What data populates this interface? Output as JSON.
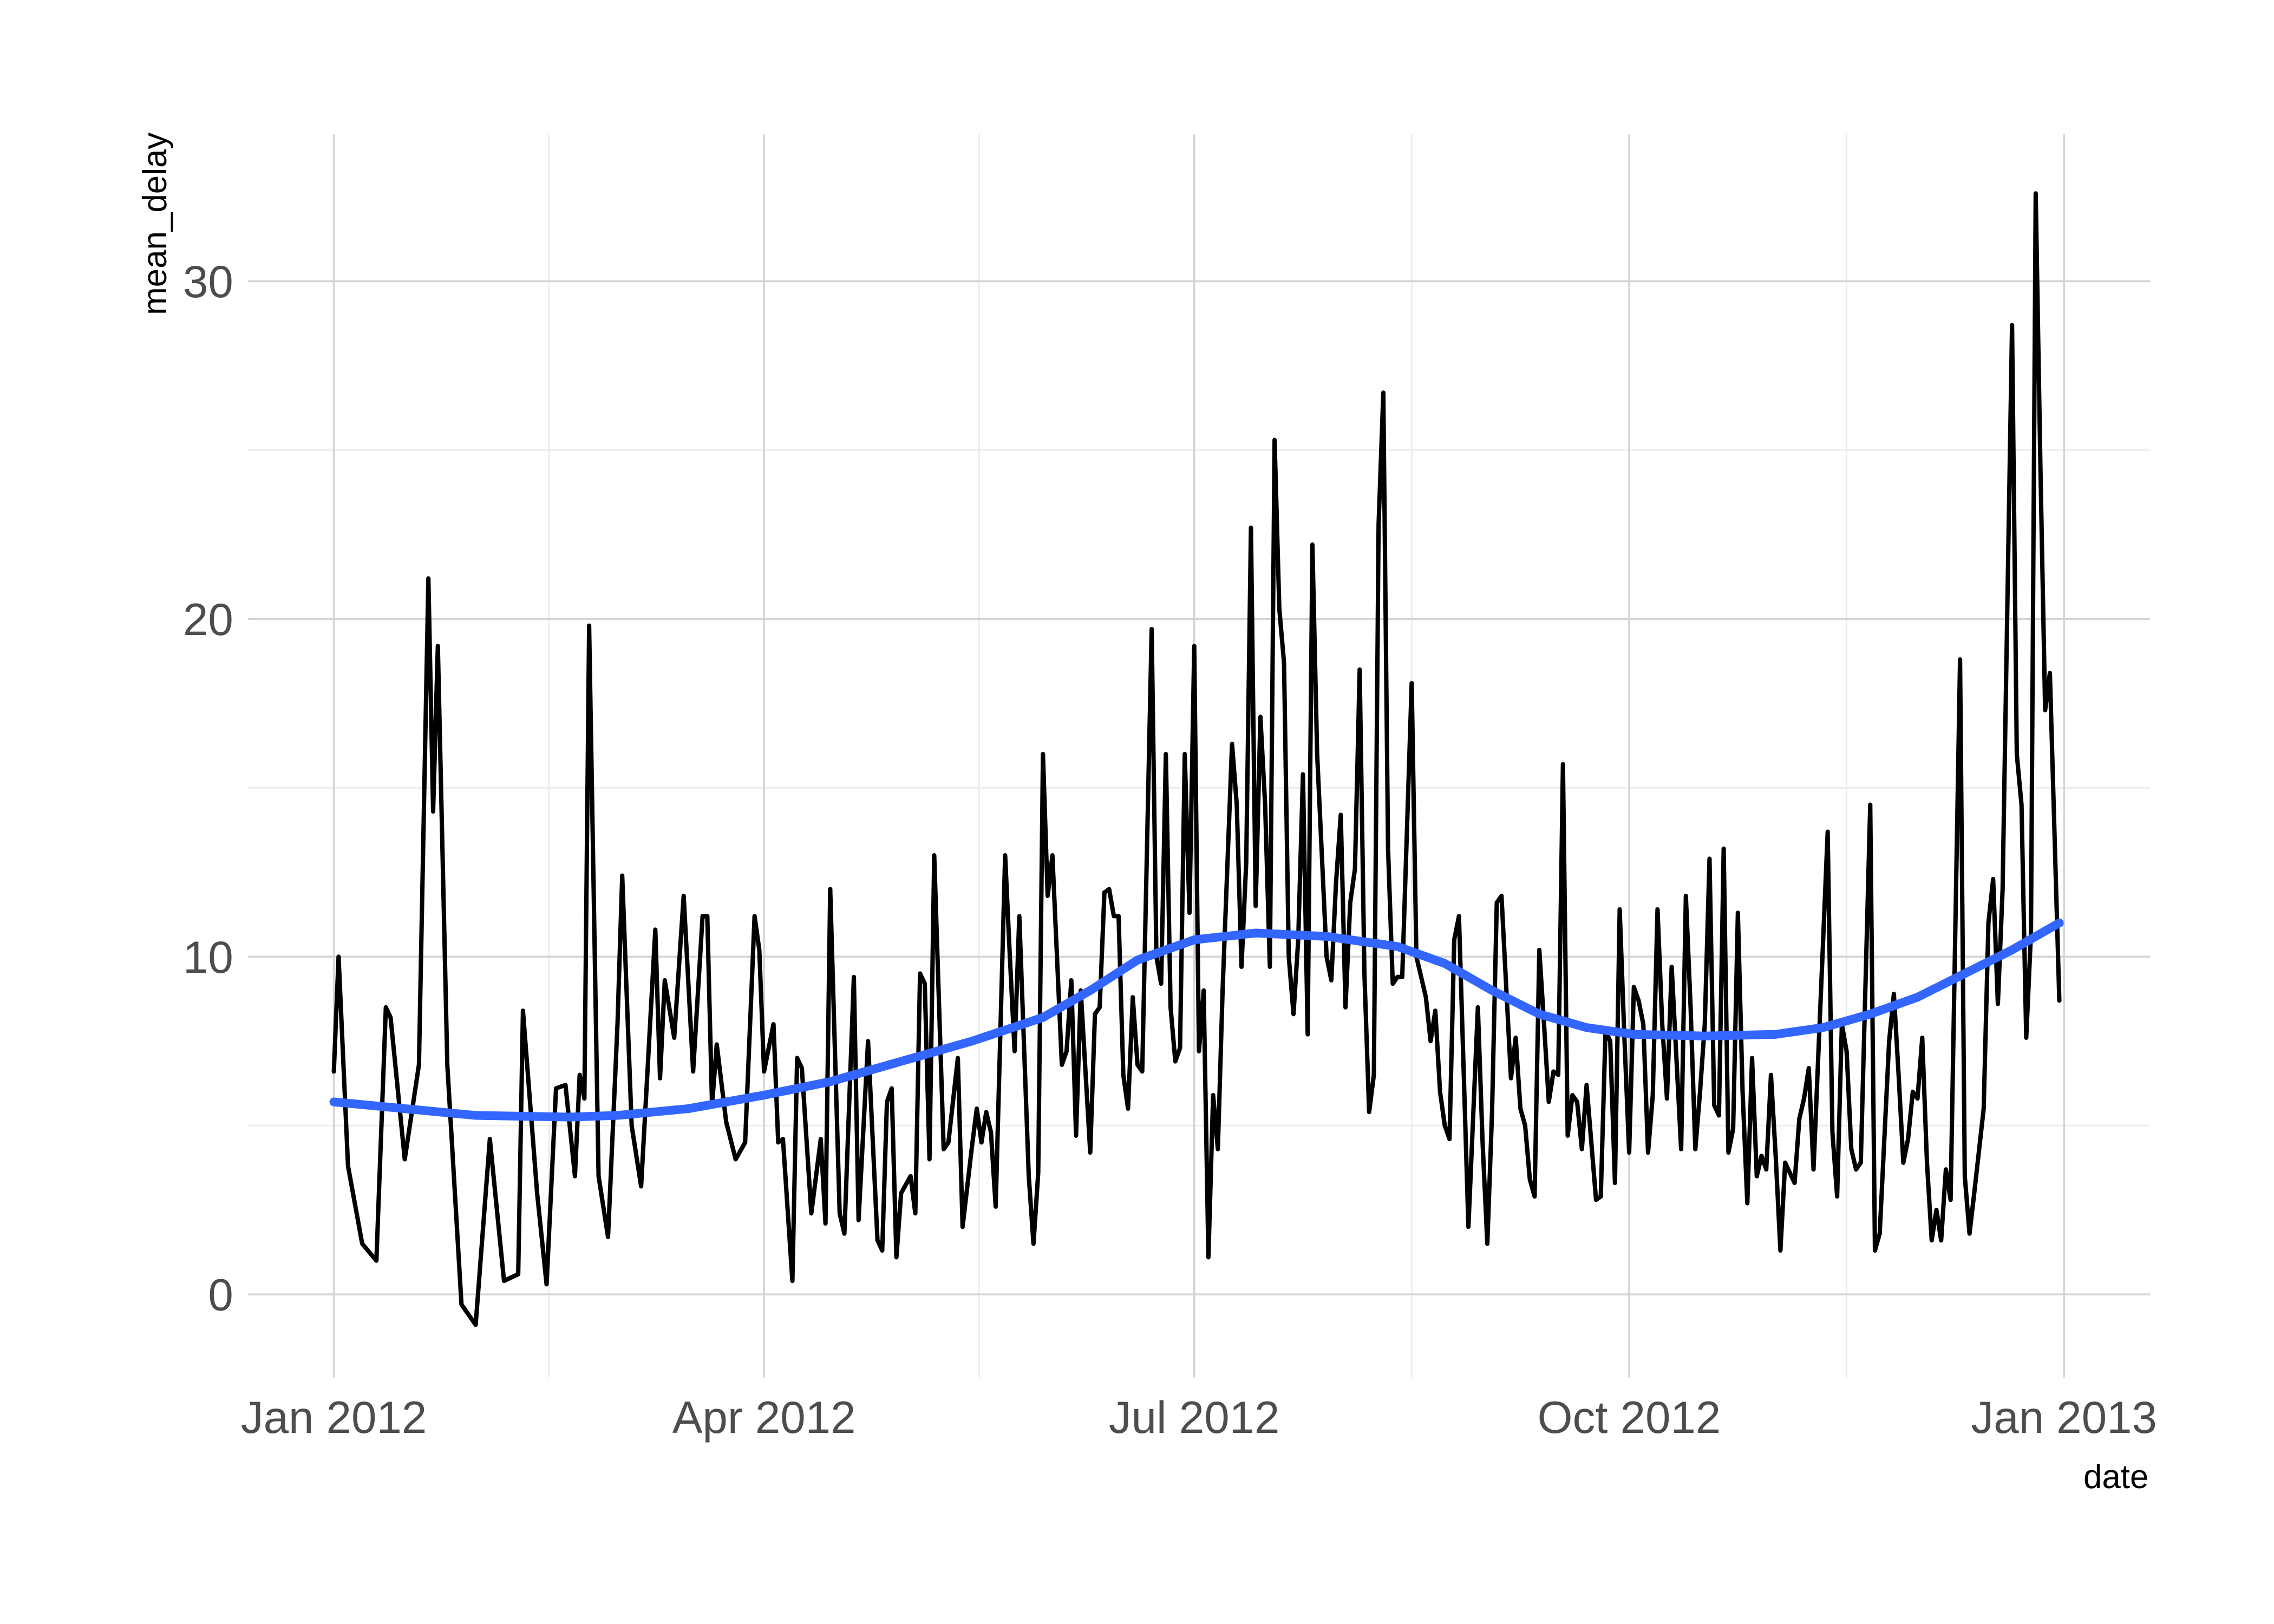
{
  "chart_data": {
    "type": "line",
    "x_label": "date",
    "y_label": "mean_delay",
    "xlim": [
      -18.2,
      384.2
    ],
    "ylim": [
      -2.46,
      34.35
    ],
    "xticks": [
      {
        "value": 0,
        "label": "Jan 2012"
      },
      {
        "value": 91,
        "label": "Apr 2012"
      },
      {
        "value": 182,
        "label": "Jul 2012"
      },
      {
        "value": 274,
        "label": "Oct 2012"
      },
      {
        "value": 366,
        "label": "Jan 2013"
      }
    ],
    "yticks": [
      0,
      10,
      20,
      30
    ],
    "grid": true,
    "series": [
      {
        "color": "#000000",
        "x": [
          0,
          1,
          3,
          6,
          9,
          11,
          12,
          15,
          18,
          20,
          21,
          22,
          24,
          27,
          30,
          33,
          36,
          39,
          40,
          43,
          45,
          47,
          49,
          51,
          52,
          53,
          54,
          56,
          58,
          60,
          61,
          63,
          65,
          68,
          69,
          70,
          72,
          74,
          76,
          78,
          79,
          80,
          81,
          83,
          85,
          87,
          89,
          90,
          91,
          93,
          94,
          95,
          97,
          98,
          99,
          101,
          103,
          104,
          105,
          107,
          108,
          110,
          111,
          113,
          115,
          116,
          117,
          118,
          119,
          120,
          122,
          123,
          124,
          125,
          126,
          127,
          129,
          130,
          132,
          133,
          135,
          136,
          137,
          138,
          139,
          140,
          142,
          143,
          144,
          145,
          147,
          148,
          149,
          150,
          151,
          152,
          154,
          155,
          156,
          157,
          158,
          160,
          161,
          162,
          163,
          164,
          165,
          166,
          167,
          168,
          169,
          170,
          171,
          173,
          174,
          175,
          176,
          177,
          178,
          179,
          180,
          181,
          182,
          183,
          184,
          185,
          186,
          187,
          188,
          190,
          191,
          192,
          193,
          194,
          195,
          196,
          197,
          198,
          199,
          200,
          201,
          202,
          203,
          204,
          205,
          206,
          207,
          208,
          210,
          211,
          212,
          213,
          214,
          215,
          216,
          217,
          218,
          219,
          220,
          221,
          222,
          223,
          224,
          225,
          226,
          228,
          229,
          231,
          232,
          233,
          234,
          235,
          236,
          237,
          238,
          240,
          242,
          243,
          244,
          245,
          246,
          247,
          249,
          250,
          251,
          252,
          253,
          254,
          255,
          256,
          257,
          258,
          259,
          260,
          261,
          262,
          263,
          264,
          265,
          266,
          267,
          268,
          269,
          270,
          271,
          272,
          273,
          274,
          275,
          276,
          277,
          278,
          279,
          280,
          281,
          282,
          283,
          284,
          285,
          286,
          287,
          288,
          289,
          290,
          291,
          292,
          293,
          294,
          295,
          296,
          297,
          298,
          299,
          300,
          301,
          302,
          303,
          304,
          305,
          306,
          307,
          308,
          309,
          310,
          311,
          312,
          313,
          316,
          317,
          318,
          319,
          320,
          321,
          322,
          323,
          325,
          326,
          327,
          329,
          330,
          331,
          332,
          333,
          334,
          335,
          336,
          337,
          338,
          339,
          340,
          341,
          342,
          344,
          345,
          346,
          347,
          349,
          350,
          351,
          352,
          353,
          355,
          356,
          357,
          358,
          359,
          360,
          361,
          362,
          363,
          365
        ],
        "values": [
          6.6,
          10,
          3.8,
          1.5,
          1.0,
          8.5,
          8.2,
          4.0,
          6.8,
          21.2,
          14.3,
          19.2,
          6.8,
          -0.3,
          -0.9,
          4.6,
          0.4,
          0.6,
          8.4,
          3.0,
          0.3,
          6.1,
          6.2,
          3.5,
          6.5,
          5.8,
          19.8,
          3.5,
          1.7,
          8.0,
          12.4,
          5.0,
          3.2,
          10.8,
          6.4,
          9.3,
          7.6,
          11.8,
          6.6,
          11.2,
          11.2,
          5.6,
          7.4,
          5.1,
          4.0,
          4.5,
          11.2,
          10.2,
          6.6,
          8.0,
          4.5,
          4.6,
          0.4,
          7.0,
          6.7,
          2.4,
          4.6,
          2.1,
          12.0,
          2.4,
          1.8,
          9.4,
          2.2,
          7.5,
          1.6,
          1.3,
          5.7,
          6.1,
          1.1,
          3.0,
          3.5,
          2.4,
          9.5,
          9.2,
          4.0,
          13.0,
          4.3,
          4.5,
          7.0,
          2.0,
          4.4,
          5.5,
          4.5,
          5.4,
          4.8,
          2.6,
          13.0,
          10.0,
          7.2,
          11.2,
          3.5,
          1.5,
          3.6,
          16.0,
          11.8,
          13.0,
          6.8,
          7.2,
          9.3,
          4.7,
          9.0,
          4.2,
          8.3,
          8.5,
          11.9,
          12.0,
          11.2,
          11.2,
          6.5,
          5.5,
          8.8,
          6.8,
          6.6,
          19.7,
          10.0,
          9.2,
          16.0,
          8.5,
          6.9,
          7.3,
          16.0,
          11.3,
          19.2,
          7.2,
          9.0,
          1.1,
          5.9,
          4.3,
          9.0,
          16.3,
          14.5,
          9.7,
          12.8,
          22.7,
          11.5,
          17.1,
          14.5,
          9.7,
          25.3,
          20.3,
          18.7,
          10.0,
          8.3,
          10.5,
          15.4,
          7.7,
          22.2,
          16.0,
          10.0,
          9.3,
          12.2,
          14.2,
          8.5,
          11.6,
          12.6,
          18.5,
          9.5,
          5.4,
          6.5,
          22.8,
          26.7,
          13.2,
          9.2,
          9.4,
          9.4,
          18.1,
          10.0,
          8.8,
          7.5,
          8.4,
          6.0,
          5.0,
          4.6,
          10.5,
          11.2,
          2.0,
          8.5,
          4.5,
          1.5,
          5.4,
          11.6,
          11.8,
          6.4,
          7.6,
          5.5,
          5.0,
          3.4,
          2.9,
          10.2,
          8.0,
          5.7,
          6.6,
          6.5,
          15.7,
          4.7,
          5.9,
          5.7,
          4.3,
          6.2,
          4.5,
          2.8,
          2.9,
          7.8,
          7.5,
          3.3,
          11.4,
          7.6,
          4.2,
          9.1,
          8.7,
          8.0,
          4.2,
          5.9,
          11.4,
          8.0,
          5.8,
          9.7,
          7.0,
          4.3,
          11.8,
          8.5,
          4.3,
          6.0,
          8.0,
          12.9,
          5.6,
          5.3,
          13.2,
          4.2,
          4.9,
          11.3,
          6.0,
          2.7,
          7.0,
          3.5,
          4.1,
          3.7,
          6.5,
          4.1,
          1.3,
          3.9,
          3.6,
          3.3,
          5.2,
          5.8,
          6.7,
          3.7,
          13.7,
          4.8,
          2.9,
          8.0,
          7.2,
          4.3,
          3.7,
          3.9,
          14.5,
          1.3,
          1.8,
          7.5,
          8.9,
          6.5,
          3.9,
          4.6,
          6.0,
          5.8,
          7.6,
          3.9,
          1.6,
          2.5,
          1.6,
          3.7,
          2.8,
          18.8,
          3.5,
          1.8,
          3.0,
          5.5,
          11.0,
          12.3,
          8.6,
          12.0,
          28.7,
          16.0,
          14.5,
          7.6,
          10.7,
          32.6,
          24.5,
          17.3,
          18.4,
          8.7
        ]
      },
      {
        "color": "#3366ff",
        "x": [
          0,
          30,
          50,
          60,
          75,
          91,
          105,
          120,
          135,
          150,
          160,
          170,
          182,
          195,
          210,
          225,
          235,
          245,
          255,
          265,
          275,
          290,
          305,
          315,
          325,
          335,
          345,
          355,
          365
        ],
        "values": [
          5.7,
          5.3,
          5.25,
          5.3,
          5.5,
          5.9,
          6.3,
          6.9,
          7.5,
          8.2,
          9.0,
          9.9,
          10.5,
          10.7,
          10.6,
          10.3,
          9.8,
          9.0,
          8.3,
          7.9,
          7.7,
          7.65,
          7.7,
          7.9,
          8.3,
          8.8,
          9.5,
          10.2,
          11.0
        ]
      }
    ]
  }
}
